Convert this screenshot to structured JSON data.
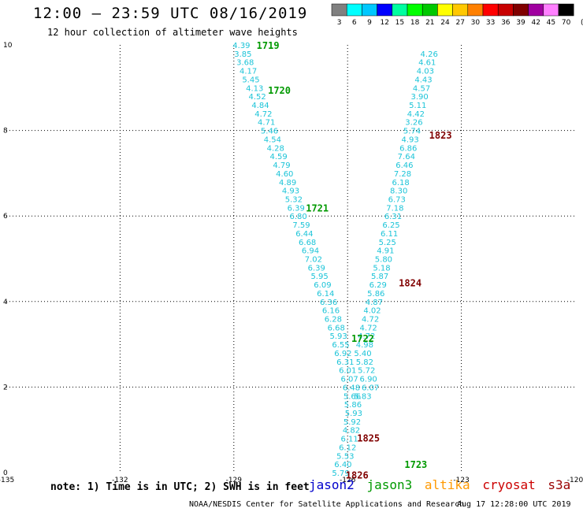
{
  "header": {
    "title": "12:00 – 23:59 UTC 08/16/2019",
    "subtitle": "12 hour collection of altimeter wave heights"
  },
  "colors": {
    "track_value": "#1cc4d8",
    "time_label_jason3": "#009900",
    "time_label_cryosat": "#800000",
    "grid": "#000000",
    "jason2": "#0000cc",
    "jason3": "#009900",
    "altika": "#ff9900",
    "cryosat": "#cc0000",
    "s3a": "#990000"
  },
  "color_scale": {
    "swatches": [
      "#808080",
      "#00ffff",
      "#00c8ff",
      "#0000ff",
      "#00ffa0",
      "#00ff00",
      "#00c800",
      "#ffff00",
      "#ffc800",
      "#ff8000",
      "#ff0000",
      "#c80000",
      "#800000",
      "#a000a0",
      "#ff80ff",
      "#000000"
    ],
    "labels": [
      "3",
      "6",
      "9",
      "12",
      "15",
      "18",
      "21",
      "24",
      "27",
      "30",
      "33",
      "36",
      "39",
      "42",
      "45",
      "70",
      "(ft)"
    ]
  },
  "footer": {
    "note": "note: 1) Time is in UTC; 2) SWH is in feet",
    "satellites": [
      {
        "name": "jason2",
        "color": "#0000cc"
      },
      {
        "name": "jason3",
        "color": "#009900"
      },
      {
        "name": "altika",
        "color": "#ff9900"
      },
      {
        "name": "cryosat",
        "color": "#cc0000"
      },
      {
        "name": "s3a",
        "color": "#990000"
      }
    ],
    "credit": "NOAA/NESDIS Center for Satellite Applications and Research",
    "timestamp": "Aug 17 12:28:00 UTC 2019"
  },
  "chart_data": {
    "type": "scatter",
    "xlim": [
      -135,
      -120
    ],
    "ylim": [
      0,
      10
    ],
    "xticks": [
      "-135",
      "-132",
      "-129",
      "-126",
      "-123",
      "-120"
    ],
    "xtick_values": [
      -135,
      -132,
      -129,
      -126,
      -123,
      -120
    ],
    "yticks": [
      "0",
      "2",
      "4",
      "6",
      "8",
      "10"
    ],
    "ytick_values": [
      0,
      2,
      4,
      6,
      8,
      10
    ],
    "grid": true,
    "series": [
      {
        "name": "jason3",
        "color": "#1cc4d8",
        "points": [
          {
            "lon": -128.8,
            "lat": 10.0,
            "swh": "4.39"
          },
          {
            "lon": -128.76,
            "lat": 9.8,
            "swh": "3.85"
          },
          {
            "lon": -128.7,
            "lat": 9.6,
            "swh": "3.68"
          },
          {
            "lon": -128.62,
            "lat": 9.4,
            "swh": "4.17"
          },
          {
            "lon": -128.55,
            "lat": 9.2,
            "swh": "5.45"
          },
          {
            "lon": -128.45,
            "lat": 9.0,
            "swh": "4.13"
          },
          {
            "lon": -128.38,
            "lat": 8.8,
            "swh": "4.52"
          },
          {
            "lon": -128.3,
            "lat": 8.6,
            "swh": "4.84"
          },
          {
            "lon": -128.22,
            "lat": 8.4,
            "swh": "4.72"
          },
          {
            "lon": -128.14,
            "lat": 8.2,
            "swh": "4.71"
          },
          {
            "lon": -128.06,
            "lat": 8.0,
            "swh": "5.46"
          },
          {
            "lon": -127.98,
            "lat": 7.8,
            "swh": "4.54"
          },
          {
            "lon": -127.9,
            "lat": 7.6,
            "swh": "4.28"
          },
          {
            "lon": -127.82,
            "lat": 7.4,
            "swh": "4.59"
          },
          {
            "lon": -127.74,
            "lat": 7.2,
            "swh": "4.79"
          },
          {
            "lon": -127.66,
            "lat": 7.0,
            "swh": "4.60"
          },
          {
            "lon": -127.58,
            "lat": 6.8,
            "swh": "4.89"
          },
          {
            "lon": -127.5,
            "lat": 6.6,
            "swh": "4.93"
          },
          {
            "lon": -127.42,
            "lat": 6.4,
            "swh": "5.32"
          },
          {
            "lon": -127.36,
            "lat": 6.2,
            "swh": "6.39"
          },
          {
            "lon": -127.3,
            "lat": 6.0,
            "swh": "6.80"
          },
          {
            "lon": -127.22,
            "lat": 5.8,
            "swh": "7.59"
          },
          {
            "lon": -127.14,
            "lat": 5.6,
            "swh": "6.44"
          },
          {
            "lon": -127.06,
            "lat": 5.4,
            "swh": "6.68"
          },
          {
            "lon": -126.98,
            "lat": 5.2,
            "swh": "6.94"
          },
          {
            "lon": -126.9,
            "lat": 5.0,
            "swh": "7.02"
          },
          {
            "lon": -126.82,
            "lat": 4.8,
            "swh": "6.39"
          },
          {
            "lon": -126.74,
            "lat": 4.6,
            "swh": "5.95"
          },
          {
            "lon": -126.66,
            "lat": 4.4,
            "swh": "6.09"
          },
          {
            "lon": -126.58,
            "lat": 4.2,
            "swh": "6.14"
          },
          {
            "lon": -126.5,
            "lat": 4.0,
            "swh": "6.36"
          },
          {
            "lon": -126.44,
            "lat": 3.8,
            "swh": "6.16"
          },
          {
            "lon": -126.38,
            "lat": 3.6,
            "swh": "6.28"
          },
          {
            "lon": -126.3,
            "lat": 3.4,
            "swh": "6.68"
          },
          {
            "lon": -126.24,
            "lat": 3.2,
            "swh": "5.93"
          },
          {
            "lon": -126.18,
            "lat": 3.0,
            "swh": "6.55"
          },
          {
            "lon": -126.12,
            "lat": 2.8,
            "swh": "6.92"
          },
          {
            "lon": -126.06,
            "lat": 2.6,
            "swh": "6.31"
          },
          {
            "lon": -126.0,
            "lat": 2.4,
            "swh": "6.01"
          },
          {
            "lon": -125.95,
            "lat": 2.2,
            "swh": "6.07"
          },
          {
            "lon": -125.9,
            "lat": 2.0,
            "swh": "6.48"
          },
          {
            "lon": -125.88,
            "lat": 1.8,
            "swh": "5.66"
          },
          {
            "lon": -125.86,
            "lat": 1.6,
            "swh": "5.86"
          },
          {
            "lon": -125.84,
            "lat": 1.4,
            "swh": "5.93"
          },
          {
            "lon": -125.88,
            "lat": 1.2,
            "swh": "5.92"
          },
          {
            "lon": -125.9,
            "lat": 1.0,
            "swh": "4.82"
          },
          {
            "lon": -125.95,
            "lat": 0.8,
            "swh": "6.11"
          },
          {
            "lon": -126.0,
            "lat": 0.6,
            "swh": "6.12"
          },
          {
            "lon": -126.06,
            "lat": 0.4,
            "swh": "5.53"
          },
          {
            "lon": -126.12,
            "lat": 0.2,
            "swh": "6.40"
          },
          {
            "lon": -126.18,
            "lat": 0.0,
            "swh": "5.79"
          }
        ]
      },
      {
        "name": "cryosat",
        "color": "#1cc4d8",
        "points": [
          {
            "lon": -123.85,
            "lat": 9.8,
            "swh": "4.26"
          },
          {
            "lon": -123.9,
            "lat": 9.6,
            "swh": "4.61"
          },
          {
            "lon": -123.95,
            "lat": 9.4,
            "swh": "4.03"
          },
          {
            "lon": -124.0,
            "lat": 9.2,
            "swh": "4.43"
          },
          {
            "lon": -124.05,
            "lat": 9.0,
            "swh": "4.57"
          },
          {
            "lon": -124.1,
            "lat": 8.8,
            "swh": "3.90"
          },
          {
            "lon": -124.15,
            "lat": 8.6,
            "swh": "5.11"
          },
          {
            "lon": -124.2,
            "lat": 8.4,
            "swh": "4.42"
          },
          {
            "lon": -124.25,
            "lat": 8.2,
            "swh": "3.26"
          },
          {
            "lon": -124.3,
            "lat": 8.0,
            "swh": "5.74"
          },
          {
            "lon": -124.35,
            "lat": 7.8,
            "swh": "4.93"
          },
          {
            "lon": -124.4,
            "lat": 7.6,
            "swh": "6.86"
          },
          {
            "lon": -124.45,
            "lat": 7.4,
            "swh": "7.64"
          },
          {
            "lon": -124.5,
            "lat": 7.2,
            "swh": "6.46"
          },
          {
            "lon": -124.55,
            "lat": 7.0,
            "swh": "7.28"
          },
          {
            "lon": -124.6,
            "lat": 6.8,
            "swh": "6.18"
          },
          {
            "lon": -124.65,
            "lat": 6.6,
            "swh": "8.30"
          },
          {
            "lon": -124.7,
            "lat": 6.4,
            "swh": "6.73"
          },
          {
            "lon": -124.75,
            "lat": 6.2,
            "swh": "7.18"
          },
          {
            "lon": -124.8,
            "lat": 6.0,
            "swh": "6.31"
          },
          {
            "lon": -124.85,
            "lat": 5.8,
            "swh": "6.25"
          },
          {
            "lon": -124.9,
            "lat": 5.6,
            "swh": "6.11"
          },
          {
            "lon": -124.95,
            "lat": 5.4,
            "swh": "5.25"
          },
          {
            "lon": -125.0,
            "lat": 5.2,
            "swh": "4.91"
          },
          {
            "lon": -125.05,
            "lat": 5.0,
            "swh": "5.80"
          },
          {
            "lon": -125.1,
            "lat": 4.8,
            "swh": "5.18"
          },
          {
            "lon": -125.15,
            "lat": 4.6,
            "swh": "5.87"
          },
          {
            "lon": -125.2,
            "lat": 4.4,
            "swh": "6.29"
          },
          {
            "lon": -125.25,
            "lat": 4.2,
            "swh": "5.86"
          },
          {
            "lon": -125.3,
            "lat": 4.0,
            "swh": "4.87"
          },
          {
            "lon": -125.35,
            "lat": 3.8,
            "swh": "4.02"
          },
          {
            "lon": -125.4,
            "lat": 3.6,
            "swh": "4.72"
          },
          {
            "lon": -125.45,
            "lat": 3.4,
            "swh": "4.72"
          },
          {
            "lon": -125.5,
            "lat": 3.2,
            "swh": "4.72"
          },
          {
            "lon": -125.55,
            "lat": 3.0,
            "swh": "4.98"
          },
          {
            "lon": -125.6,
            "lat": 2.8,
            "swh": "5.40"
          },
          {
            "lon": -125.55,
            "lat": 2.6,
            "swh": "5.82"
          },
          {
            "lon": -125.5,
            "lat": 2.4,
            "swh": "5.72"
          },
          {
            "lon": -125.45,
            "lat": 2.2,
            "swh": "6.90"
          },
          {
            "lon": -125.4,
            "lat": 2.0,
            "swh": "6.07"
          },
          {
            "lon": -125.6,
            "lat": 1.8,
            "swh": "5.83"
          }
        ]
      }
    ],
    "time_labels": [
      {
        "text": "1719",
        "lon": -128.1,
        "lat": 10.0,
        "color": "#009900"
      },
      {
        "text": "1720",
        "lon": -127.8,
        "lat": 8.95,
        "color": "#009900"
      },
      {
        "text": "1721",
        "lon": -126.8,
        "lat": 6.2,
        "color": "#009900"
      },
      {
        "text": "1722",
        "lon": -125.6,
        "lat": 3.15,
        "color": "#009900"
      },
      {
        "text": "1723",
        "lon": -124.2,
        "lat": 0.2,
        "color": "#009900"
      },
      {
        "text": "1823",
        "lon": -123.55,
        "lat": 7.9,
        "color": "#800000"
      },
      {
        "text": "1824",
        "lon": -124.35,
        "lat": 4.45,
        "color": "#800000"
      },
      {
        "text": "1825",
        "lon": -125.45,
        "lat": 0.82,
        "color": "#800000"
      },
      {
        "text": "1826",
        "lon": -125.75,
        "lat": -0.05,
        "color": "#800000"
      }
    ]
  }
}
